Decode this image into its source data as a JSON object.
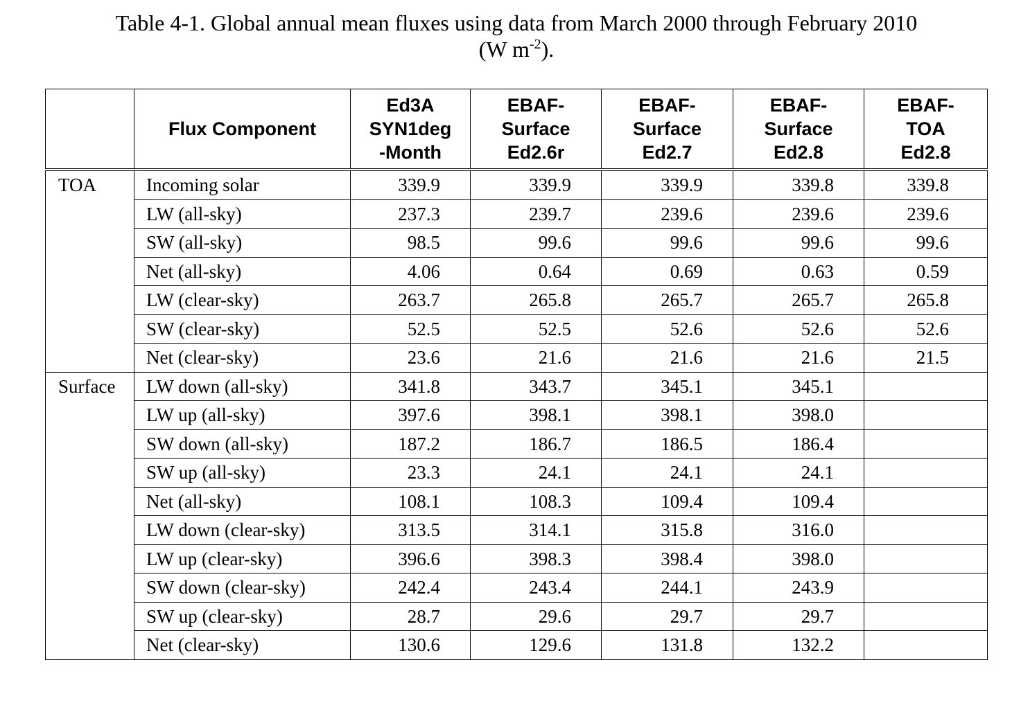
{
  "caption": {
    "line1": "Table 4-1.  Global annual mean fluxes using data from March 2000 through February 2010",
    "line2_prefix": "(W m",
    "line2_exp": "-2",
    "line2_suffix": ")."
  },
  "header": {
    "group_col": "",
    "component": "Flux Component",
    "col1": [
      "Ed3A",
      "SYN1deg",
      "-Month"
    ],
    "col2": [
      "EBAF-",
      "Surface",
      "Ed2.6r"
    ],
    "col3": [
      "EBAF-",
      "Surface",
      "Ed2.7"
    ],
    "col4": [
      "EBAF-",
      "Surface",
      "Ed2.8"
    ],
    "col5": [
      "EBAF-",
      "TOA",
      "Ed2.8"
    ]
  },
  "groups": {
    "toa": "TOA",
    "surface": "Surface"
  },
  "toa_rows": [
    {
      "label": "Incoming solar",
      "v": [
        "339.9",
        "339.9",
        "339.9",
        "339.8",
        "339.8"
      ]
    },
    {
      "label": "LW (all-sky)",
      "v": [
        "237.3",
        "239.7",
        "239.6",
        "239.6",
        "239.6"
      ]
    },
    {
      "label": "SW (all-sky)",
      "v": [
        "98.5",
        "99.6",
        "99.6",
        "99.6",
        "99.6"
      ]
    },
    {
      "label": "Net (all-sky)",
      "v": [
        "4.06",
        "0.64",
        "0.69",
        "0.63",
        "0.59"
      ]
    },
    {
      "label": "LW (clear-sky)",
      "v": [
        "263.7",
        "265.8",
        "265.7",
        "265.7",
        "265.8"
      ]
    },
    {
      "label": "SW (clear-sky)",
      "v": [
        "52.5",
        "52.5",
        "52.6",
        "52.6",
        "52.6"
      ]
    },
    {
      "label": "Net (clear-sky)",
      "v": [
        "23.6",
        "21.6",
        "21.6",
        "21.6",
        "21.5"
      ]
    }
  ],
  "surface_rows": [
    {
      "label": "LW down (all-sky)",
      "v": [
        "341.8",
        "343.7",
        "345.1",
        "345.1",
        ""
      ]
    },
    {
      "label": "LW up (all-sky)",
      "v": [
        "397.6",
        "398.1",
        "398.1",
        "398.0",
        ""
      ]
    },
    {
      "label": "SW down (all-sky)",
      "v": [
        "187.2",
        "186.7",
        "186.5",
        "186.4",
        ""
      ]
    },
    {
      "label": "SW up (all-sky)",
      "v": [
        "23.3",
        "24.1",
        "24.1",
        "24.1",
        ""
      ]
    },
    {
      "label": "Net (all-sky)",
      "v": [
        "108.1",
        "108.3",
        "109.4",
        "109.4",
        ""
      ]
    },
    {
      "label": "LW down (clear-sky)",
      "v": [
        "313.5",
        "314.1",
        "315.8",
        "316.0",
        ""
      ]
    },
    {
      "label": "LW up (clear-sky)",
      "v": [
        "396.6",
        "398.3",
        "398.4",
        "398.0",
        ""
      ]
    },
    {
      "label": "SW down (clear-sky)",
      "v": [
        "242.4",
        "243.4",
        "244.1",
        "243.9",
        ""
      ]
    },
    {
      "label": "SW up (clear-sky)",
      "v": [
        "28.7",
        "29.6",
        "29.7",
        "29.7",
        ""
      ]
    },
    {
      "label": "Net (clear-sky)",
      "v": [
        "130.6",
        "129.6",
        "131.8",
        "132.2",
        ""
      ]
    }
  ]
}
